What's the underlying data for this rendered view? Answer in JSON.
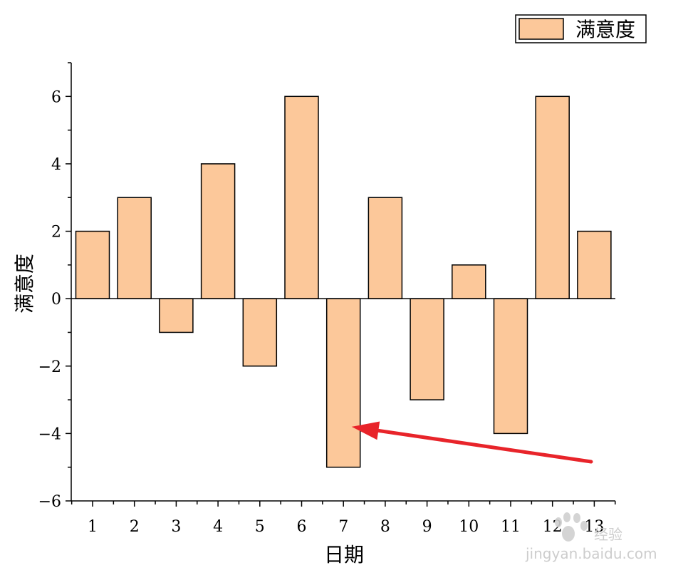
{
  "chart_data": {
    "type": "bar",
    "categories": [
      "1",
      "2",
      "3",
      "4",
      "5",
      "6",
      "7",
      "8",
      "9",
      "10",
      "11",
      "12",
      "13"
    ],
    "series": [
      {
        "name": "满意度",
        "values": [
          2,
          3,
          -1,
          4,
          -2,
          6,
          -5,
          3,
          -3,
          1,
          -4,
          6,
          2
        ],
        "color": "#fcc89a"
      }
    ],
    "xlabel": "日期",
    "ylabel": "满意度",
    "ylim": [
      -6,
      7
    ],
    "yticks": [
      -6,
      -4,
      -2,
      0,
      2,
      4,
      6
    ],
    "yticks_text": [
      "−6",
      "−4",
      "−2",
      "0",
      "2",
      "4",
      "6"
    ],
    "grid": false,
    "legend_position": "top-right",
    "annotation": {
      "type": "arrow",
      "color": "#e8242a",
      "points_to_category": "7",
      "points_to_value": -3.8
    }
  },
  "watermark": {
    "text": "经验",
    "subtext": "jingyan.baidu.com"
  }
}
